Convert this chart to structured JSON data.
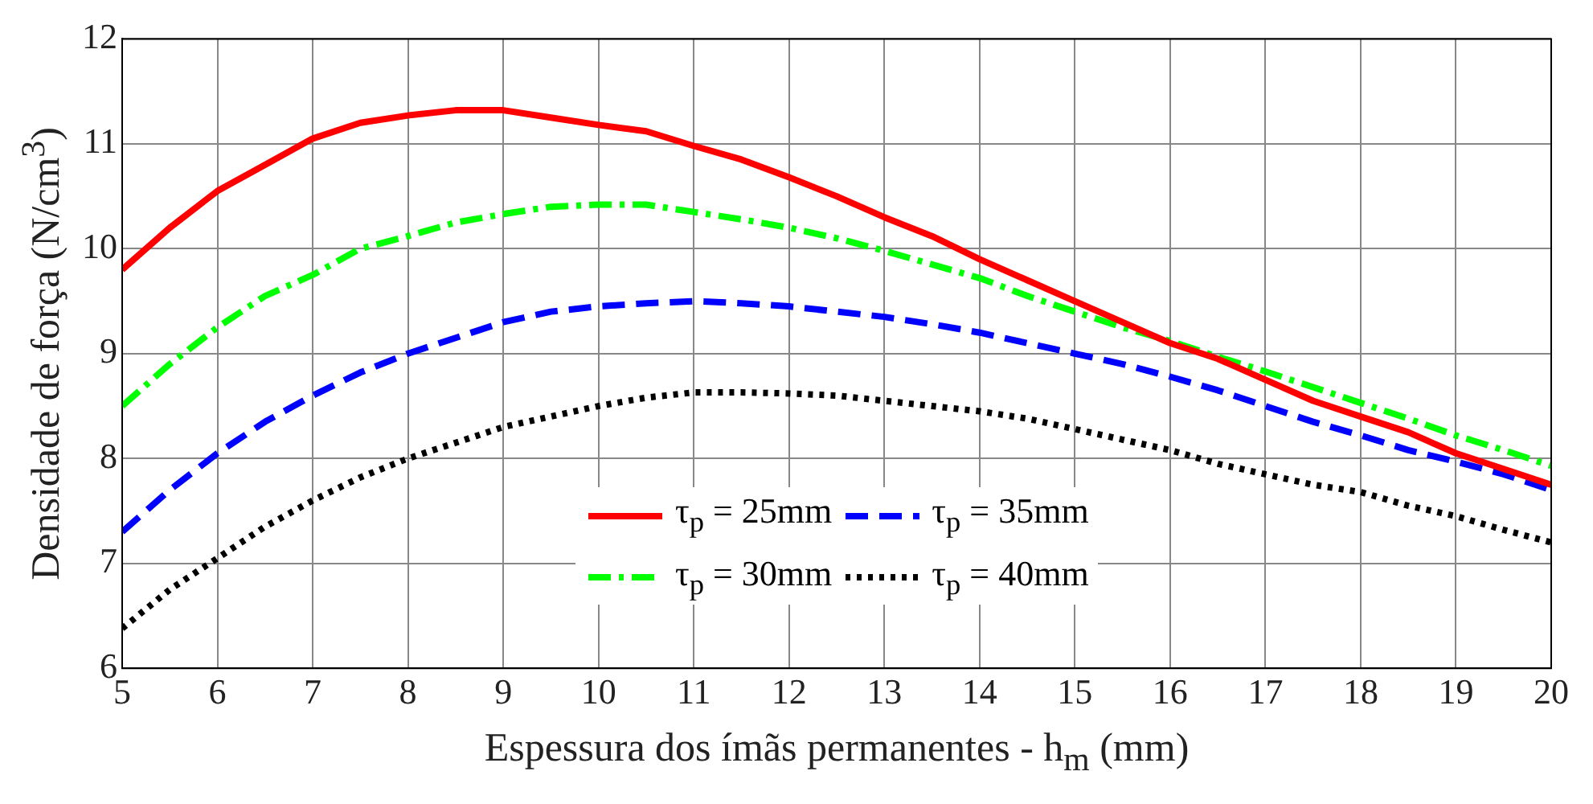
{
  "chart_data": {
    "type": "line",
    "xlabel": "Espessura dos ímãs permanentes - h$_{m}$ (mm)",
    "ylabel": "Densidade de força (N/cm$^{3}$)",
    "x": [
      5,
      5.5,
      6,
      6.5,
      7,
      7.5,
      8,
      8.5,
      9,
      9.5,
      10,
      10.5,
      11,
      11.5,
      12,
      12.5,
      13,
      13.5,
      14,
      14.5,
      15,
      15.5,
      16,
      16.5,
      17,
      17.5,
      18,
      18.5,
      19,
      19.5,
      20
    ],
    "series": [
      {
        "name": "τ$_{p}$ = 25mm",
        "color": "#ff0000",
        "line_style": "solid",
        "values": [
          9.8,
          10.2,
          10.55,
          10.8,
          11.05,
          11.2,
          11.27,
          11.32,
          11.32,
          11.25,
          11.18,
          11.12,
          10.98,
          10.85,
          10.68,
          10.5,
          10.3,
          10.12,
          9.9,
          9.7,
          9.5,
          9.3,
          9.1,
          8.95,
          8.75,
          8.55,
          8.4,
          8.25,
          8.05,
          7.9,
          7.75
        ]
      },
      {
        "name": "τ$_{p}$ = 35mm",
        "color": "#0000ff",
        "line_style": "dashed",
        "values": [
          7.3,
          7.7,
          8.05,
          8.35,
          8.6,
          8.82,
          9.0,
          9.15,
          9.3,
          9.4,
          9.45,
          9.48,
          9.5,
          9.48,
          9.45,
          9.4,
          9.35,
          9.28,
          9.2,
          9.1,
          9.0,
          8.9,
          8.78,
          8.65,
          8.5,
          8.35,
          8.22,
          8.08,
          7.97,
          7.85,
          7.7
        ]
      },
      {
        "name": "τ$_{p}$ = 30mm",
        "color": "#00ff00",
        "line_style": "dashdot",
        "values": [
          8.5,
          8.9,
          9.25,
          9.55,
          9.75,
          10.0,
          10.12,
          10.25,
          10.33,
          10.4,
          10.42,
          10.42,
          10.35,
          10.28,
          10.2,
          10.1,
          9.98,
          9.85,
          9.72,
          9.55,
          9.4,
          9.25,
          9.12,
          8.97,
          8.83,
          8.68,
          8.53,
          8.38,
          8.22,
          8.08,
          7.93
        ]
      },
      {
        "name": "τ$_{p}$ = 40mm",
        "color": "#000000",
        "line_style": "dotted",
        "values": [
          6.38,
          6.75,
          7.05,
          7.35,
          7.6,
          7.82,
          8.0,
          8.15,
          8.3,
          8.4,
          8.5,
          8.58,
          8.63,
          8.63,
          8.62,
          8.6,
          8.55,
          8.5,
          8.45,
          8.38,
          8.28,
          8.18,
          8.08,
          7.95,
          7.85,
          7.75,
          7.68,
          7.55,
          7.45,
          7.32,
          7.2
        ]
      }
    ],
    "xlim": [
      5,
      20
    ],
    "xticks": [
      5,
      6,
      7,
      8,
      9,
      10,
      11,
      12,
      13,
      14,
      15,
      16,
      17,
      18,
      19,
      20
    ],
    "ylim": [
      6,
      12
    ],
    "yticks": [
      6,
      7,
      8,
      9,
      10,
      11,
      12
    ],
    "grid": true,
    "legend": "bottom"
  }
}
